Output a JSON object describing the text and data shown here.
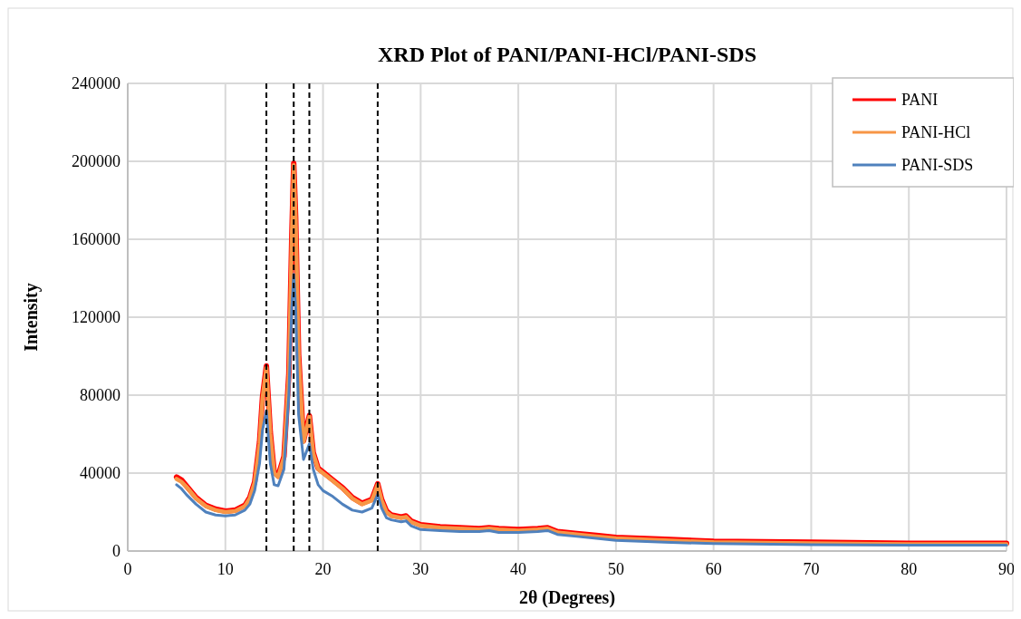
{
  "chart_data": {
    "type": "line",
    "title": "XRD Plot of PANI/PANI-HCl/PANI-SDS",
    "xlabel": "2θ (Degrees)",
    "ylabel": "Intensity",
    "x": [
      5,
      5.5,
      6,
      7,
      8,
      9,
      10,
      11,
      12,
      12.5,
      13,
      13.5,
      13.8,
      14.2,
      14.6,
      15,
      15.4,
      16,
      16.5,
      16.8,
      17,
      17.2,
      17.5,
      18,
      18.6,
      19,
      19.5,
      20,
      21,
      22,
      23,
      24,
      25,
      25.6,
      26,
      26.5,
      27,
      28,
      28.5,
      29,
      30,
      32,
      34,
      36,
      37,
      38,
      40,
      42,
      43,
      44,
      46,
      48,
      50,
      55,
      60,
      70,
      80,
      90
    ],
    "series": [
      {
        "name": "PANI",
        "color": "#ff0000",
        "values": [
          38000,
          36500,
          33500,
          27500,
          23500,
          21500,
          20500,
          21000,
          23500,
          27500,
          35500,
          56000,
          79000,
          95000,
          61000,
          40500,
          38500,
          48500,
          91000,
          161000,
          199000,
          171000,
          101000,
          56500,
          69500,
          50500,
          42500,
          40500,
          36500,
          32500,
          27500,
          24500,
          26500,
          34500,
          26500,
          20500,
          18500,
          17500,
          18000,
          15500,
          13500,
          12500,
          12000,
          11500,
          12000,
          11500,
          11000,
          11500,
          12000,
          10000,
          9000,
          8000,
          7000,
          6000,
          5000,
          4500,
          4000,
          4000
        ]
      },
      {
        "name": "PANI-HCl",
        "color": "#f79646",
        "values": [
          37000,
          35500,
          33000,
          27000,
          23000,
          21000,
          20000,
          20500,
          23000,
          27000,
          35000,
          55000,
          78000,
          94000,
          60000,
          40000,
          38000,
          48000,
          90000,
          160000,
          198000,
          170000,
          100000,
          56000,
          69000,
          50000,
          42000,
          40000,
          36000,
          32000,
          27000,
          24000,
          26000,
          34000,
          26000,
          20000,
          18000,
          17000,
          17500,
          15000,
          13000,
          12000,
          11500,
          11000,
          11500,
          11000,
          10500,
          11000,
          11500,
          9500,
          8500,
          7500,
          6500,
          5500,
          4500,
          4000,
          3500,
          3500
        ]
      },
      {
        "name": "PANI-SDS",
        "color": "#4f81bd",
        "values": [
          34000,
          32000,
          29000,
          24000,
          20000,
          18500,
          18000,
          18500,
          21000,
          24000,
          31000,
          45000,
          62000,
          72000,
          45000,
          34000,
          33500,
          42000,
          80000,
          125000,
          142000,
          125000,
          70000,
          47000,
          55000,
          42000,
          34000,
          31000,
          28000,
          24000,
          21000,
          20000,
          22000,
          29000,
          22000,
          17000,
          16000,
          15000,
          15500,
          13000,
          11000,
          10500,
          10000,
          10000,
          10500,
          9500,
          9500,
          10000,
          10500,
          8500,
          7500,
          6500,
          5500,
          4500,
          3800,
          3200,
          3000,
          3000
        ]
      }
    ],
    "xlim": [
      0,
      90
    ],
    "xticks": [
      0,
      10,
      20,
      30,
      40,
      50,
      60,
      70,
      80,
      90
    ],
    "ylim": [
      0,
      240000
    ],
    "yticks": [
      0,
      40000,
      80000,
      120000,
      160000,
      200000,
      240000
    ],
    "grid": true,
    "legend": "top right",
    "marker": "none",
    "line_style": "solid",
    "ref_lines": [
      {
        "axis": "x",
        "value": 14.2,
        "color": "#000000",
        "line_style": "dashed"
      },
      {
        "axis": "x",
        "value": 17,
        "color": "#000000",
        "line_style": "dashed"
      },
      {
        "axis": "x",
        "value": 18.6,
        "color": "#000000",
        "line_style": "dashed"
      },
      {
        "axis": "x",
        "value": 25.6,
        "color": "#000000",
        "line_style": "dashed"
      }
    ]
  }
}
